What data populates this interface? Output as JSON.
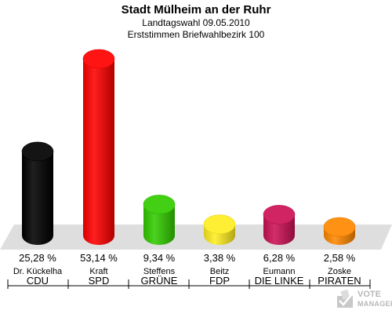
{
  "header": {
    "title": "Stadt Mülheim an der Ruhr",
    "subtitle1": "Landtagswahl 09.05.2010",
    "subtitle2": "Erststimmen Briefwahlbezirk 100"
  },
  "chart_data": {
    "type": "bar",
    "title": "Stadt Mülheim an der Ruhr",
    "subtitle": [
      "Landtagswahl 09.05.2010",
      "Erststimmen Briefwahlbezirk 100"
    ],
    "categories": [
      "CDU",
      "SPD",
      "GRÜNE",
      "FDP",
      "DIE LINKE",
      "PIRATEN"
    ],
    "candidates": [
      "Dr. Kückelha",
      "Kraft",
      "Steffens",
      "Beitz",
      "Eumann",
      "Zoske"
    ],
    "values": [
      25.28,
      53.14,
      9.34,
      3.38,
      6.28,
      2.58
    ],
    "labels": [
      "25,28 %",
      "53,14 %",
      "9,34 %",
      "3,38 %",
      "6,28 %",
      "2,58 %"
    ],
    "colors": [
      "#000000",
      "#ff0000",
      "#33cc00",
      "#ffee22",
      "#cc1155",
      "#ff8800"
    ],
    "ylim": [
      0,
      53.14
    ],
    "grid": false,
    "legend": "none"
  },
  "logo": {
    "line1": "VOTE",
    "line2": "MANAGER"
  }
}
